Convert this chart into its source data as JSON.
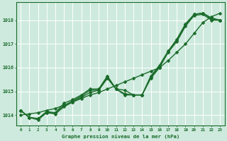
{
  "background_color": "#ceeade",
  "grid_color": "#aaccbb",
  "line_color": "#1a6b2a",
  "title": "Graphe pression niveau de la mer (hPa)",
  "xlim": [
    -0.5,
    23.5
  ],
  "ylim": [
    1013.55,
    1018.75
  ],
  "yticks": [
    1014,
    1015,
    1016,
    1017,
    1018
  ],
  "xticks": [
    0,
    1,
    2,
    3,
    4,
    5,
    6,
    7,
    8,
    9,
    10,
    11,
    12,
    13,
    14,
    15,
    16,
    17,
    18,
    19,
    20,
    21,
    22,
    23
  ],
  "series": [
    {
      "x": [
        0,
        1,
        2,
        3,
        4,
        5,
        6,
        7,
        8,
        9,
        10,
        11,
        12,
        13,
        14,
        15,
        16,
        17,
        18,
        19,
        20,
        21,
        22,
        23
      ],
      "y": [
        1014.2,
        1013.9,
        1013.8,
        1014.1,
        1014.05,
        1014.35,
        1014.55,
        1014.75,
        1014.95,
        1015.05,
        1015.55,
        1015.1,
        1015.05,
        1014.85,
        1014.85,
        1015.55,
        1016.0,
        1016.65,
        1017.1,
        1017.75,
        1018.2,
        1018.25,
        1018.0,
        1018.0
      ],
      "marker": "D",
      "markersize": 2.5,
      "linewidth": 1.0
    },
    {
      "x": [
        0,
        1,
        2,
        3,
        4,
        5,
        6,
        7,
        8,
        9,
        10,
        11,
        12,
        13,
        14,
        15,
        16,
        17,
        18,
        19,
        20,
        21,
        22,
        23
      ],
      "y": [
        1014.2,
        1013.9,
        1013.85,
        1014.1,
        1014.1,
        1014.4,
        1014.6,
        1014.8,
        1015.05,
        1015.05,
        1015.6,
        1015.1,
        1014.85,
        1014.85,
        1014.85,
        1015.6,
        1016.05,
        1016.65,
        1017.15,
        1017.8,
        1018.25,
        1018.3,
        1018.05,
        1018.0
      ],
      "marker": "D",
      "markersize": 2.5,
      "linewidth": 1.0
    },
    {
      "x": [
        0,
        1,
        2,
        3,
        4,
        5,
        6,
        7,
        8,
        9,
        10,
        11,
        12,
        13,
        14,
        15,
        16,
        17,
        18,
        19,
        20,
        21,
        22,
        23
      ],
      "y": [
        1014.2,
        1013.9,
        1013.85,
        1014.15,
        1014.1,
        1014.5,
        1014.65,
        1014.85,
        1015.1,
        1015.1,
        1015.65,
        1015.1,
        1014.9,
        1014.85,
        1014.85,
        1015.65,
        1016.1,
        1016.7,
        1017.2,
        1017.85,
        1018.25,
        1018.3,
        1018.1,
        1018.0
      ],
      "marker": "D",
      "markersize": 2.5,
      "linewidth": 1.0
    },
    {
      "x": [
        0,
        1,
        2,
        3,
        4,
        5,
        6,
        7,
        8,
        9,
        10,
        11,
        12,
        13,
        14,
        15,
        16,
        17,
        18,
        19,
        20,
        21,
        22,
        23
      ],
      "y": [
        1014.0,
        1014.05,
        1014.1,
        1014.2,
        1014.28,
        1014.42,
        1014.55,
        1014.7,
        1014.85,
        1014.95,
        1015.1,
        1015.25,
        1015.4,
        1015.55,
        1015.7,
        1015.85,
        1016.0,
        1016.3,
        1016.65,
        1017.0,
        1017.45,
        1017.9,
        1018.15,
        1018.3
      ],
      "marker": "D",
      "markersize": 2.5,
      "linewidth": 1.0
    }
  ]
}
